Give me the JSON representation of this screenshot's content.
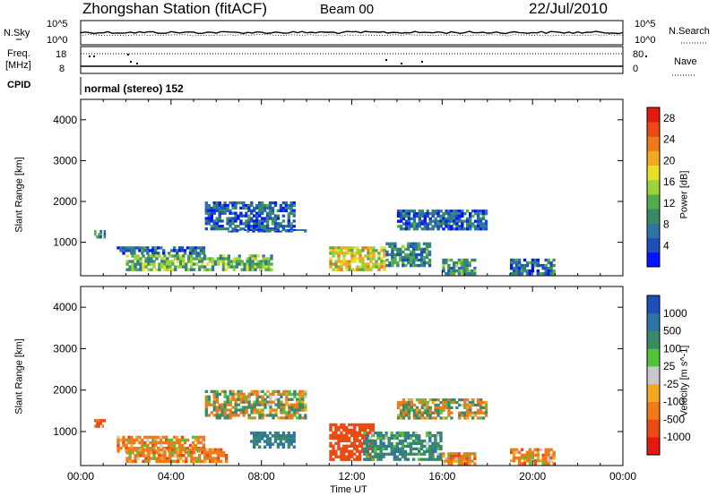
{
  "header": {
    "station": "Zhongshan Station (fitACF)",
    "beam": "Beam 00",
    "date": "22/Jul/2010",
    "cpid_value": "normal (stereo) 152"
  },
  "strip_labels": {
    "nsky": "N.Sky",
    "nsky_hi": "10^5",
    "nsky_lo": "10^0",
    "nsearch": "N.Search",
    "nsearch_hi": "10^5",
    "nsearch_lo": "10^0",
    "freq_line1": "Freq.",
    "freq_line2": "[MHz]",
    "freq_hi": "18",
    "freq_lo": "8",
    "nave": "Nave",
    "nave_hi": "80",
    "nave_lo": "0",
    "cpid": "CPID"
  },
  "chart_data": [
    {
      "type": "heatmap",
      "name": "power",
      "ylabel": "Slant Range [km]",
      "yticks": [
        1000,
        2000,
        3000,
        4000
      ],
      "ylim": [
        180,
        4500
      ],
      "xlim": [
        0,
        24
      ],
      "colorbar": {
        "label": "Power [dB]",
        "ticks": [
          "4",
          "8",
          "12",
          "16",
          "20",
          "24",
          "28"
        ],
        "range": [
          0,
          30
        ],
        "colors": [
          "#0014ff",
          "#1d4fb8",
          "#2e74a4",
          "#3a8a68",
          "#52ac4e",
          "#9cd23a",
          "#e6e02c",
          "#f5a922",
          "#f07a1a",
          "#ec4a14",
          "#e41a0e"
        ]
      },
      "echo_regions": [
        {
          "t": [
            0.6,
            1.1
          ],
          "r": [
            1100,
            1300
          ],
          "level": 7
        },
        {
          "t": [
            1.6,
            5.5
          ],
          "r": [
            700,
            900
          ],
          "level": 5
        },
        {
          "t": [
            2.0,
            8.5
          ],
          "r": [
            300,
            700
          ],
          "level": 12
        },
        {
          "t": [
            5.5,
            9.5
          ],
          "r": [
            1300,
            2000
          ],
          "level": 5
        },
        {
          "t": [
            6.5,
            10.0
          ],
          "r": [
            1250,
            1320
          ],
          "level": 4
        },
        {
          "t": [
            11.0,
            13.5
          ],
          "r": [
            300,
            900
          ],
          "level": 18
        },
        {
          "t": [
            13.5,
            15.5
          ],
          "r": [
            400,
            1000
          ],
          "level": 8
        },
        {
          "t": [
            14.0,
            18.0
          ],
          "r": [
            1300,
            1800
          ],
          "level": 5
        },
        {
          "t": [
            16.0,
            17.5
          ],
          "r": [
            200,
            600
          ],
          "level": 10
        },
        {
          "t": [
            19.0,
            21.0
          ],
          "r": [
            200,
            600
          ],
          "level": 6
        }
      ]
    },
    {
      "type": "heatmap",
      "name": "velocity",
      "xlabel": "Time UT",
      "ylabel": "Slant Range [km]",
      "xticks": [
        "00:00",
        "04:00",
        "08:00",
        "12:00",
        "16:00",
        "20:00",
        "00:00"
      ],
      "yticks": [
        1000,
        2000,
        3000,
        4000
      ],
      "ylim": [
        180,
        4500
      ],
      "xlim": [
        0,
        24
      ],
      "colorbar": {
        "label": "Velocity [m s^-1]",
        "ticks": [
          "-1000",
          "-500",
          "-100",
          "-25",
          "25",
          "100",
          "500",
          "1000"
        ],
        "colors": [
          "#e41a0e",
          "#ec4a14",
          "#f07a1a",
          "#f5a922",
          "#c8c8c8",
          "#52c43a",
          "#3a8a68",
          "#2e74a4",
          "#1d4fb8"
        ]
      },
      "echo_regions": [
        {
          "t": [
            0.6,
            1.1
          ],
          "r": [
            1100,
            1300
          ],
          "v": -300
        },
        {
          "t": [
            1.6,
            5.5
          ],
          "r": [
            500,
            900
          ],
          "v": -150
        },
        {
          "t": [
            2.0,
            6.5
          ],
          "r": [
            250,
            600
          ],
          "v": -150
        },
        {
          "t": [
            5.5,
            10.0
          ],
          "r": [
            1300,
            2000
          ],
          "v": 0
        },
        {
          "t": [
            7.5,
            9.5
          ],
          "r": [
            600,
            1000
          ],
          "v": 300
        },
        {
          "t": [
            11.0,
            13.0
          ],
          "r": [
            300,
            1200
          ],
          "v": -500
        },
        {
          "t": [
            12.5,
            16.0
          ],
          "r": [
            300,
            1000
          ],
          "v": 200
        },
        {
          "t": [
            14.0,
            18.0
          ],
          "r": [
            1300,
            1800
          ],
          "v": 0
        },
        {
          "t": [
            16.0,
            17.5
          ],
          "r": [
            200,
            500
          ],
          "v": -150
        },
        {
          "t": [
            19.0,
            21.0
          ],
          "r": [
            200,
            600
          ],
          "v": -150
        }
      ]
    }
  ]
}
